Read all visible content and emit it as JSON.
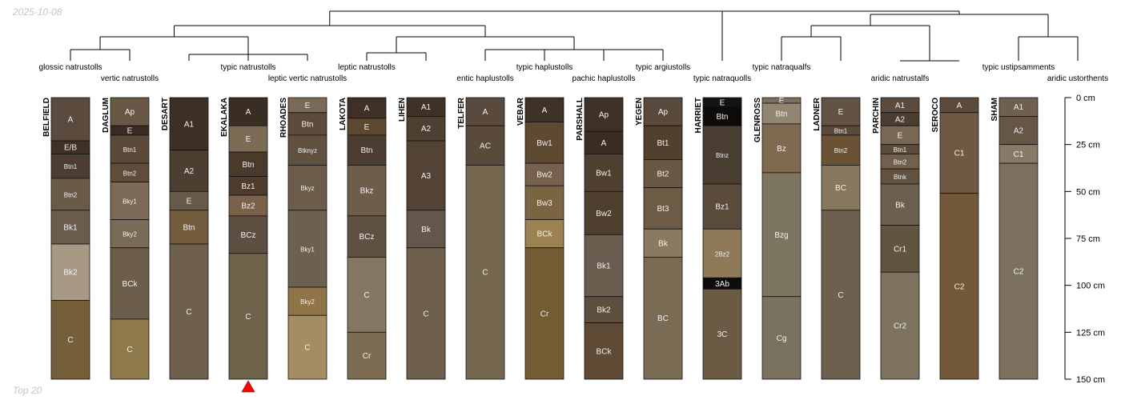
{
  "header": {
    "date": "2025-10-08"
  },
  "footer": {
    "caption": "Top 20"
  },
  "depth_axis": {
    "max": 150,
    "ticks": [
      {
        "value": 0,
        "label": "0 cm"
      },
      {
        "value": 25,
        "label": "25 cm"
      },
      {
        "value": 50,
        "label": "50 cm"
      },
      {
        "value": 75,
        "label": "75 cm"
      },
      {
        "value": 100,
        "label": "100 cm"
      },
      {
        "value": 125,
        "label": "125 cm"
      },
      {
        "value": 150,
        "label": "150 cm"
      }
    ]
  },
  "taxa": [
    {
      "name": "glossic natrustolls",
      "profile": 0
    },
    {
      "name": "vertic natrustolls",
      "profile": 1
    },
    {
      "name": "typic natrustolls",
      "profile": 3
    },
    {
      "name": "leptic vertic natrustolls",
      "profile": 4
    },
    {
      "name": "leptic natrustolls",
      "profile": 5
    },
    {
      "name": "entic haplustolls",
      "profile": 7
    },
    {
      "name": "typic haplustolls",
      "profile": 8
    },
    {
      "name": "pachic haplustolls",
      "profile": 9
    },
    {
      "name": "typic argiustolls",
      "profile": 10
    },
    {
      "name": "typic natraquolls",
      "profile": 11
    },
    {
      "name": "typic natraqualfs",
      "profile": 12
    },
    {
      "name": "aridic natrustalfs",
      "profile": 14
    },
    {
      "name": "typic ustipsamments",
      "profile": 16
    },
    {
      "name": "aridic ustorthents",
      "profile": 17
    }
  ],
  "highlight": {
    "profile": 3,
    "marker": "red-triangle",
    "color": "#ff0000"
  },
  "profiles": [
    {
      "name": "BELFIELD",
      "horizons": [
        {
          "label": "A",
          "top": 0,
          "bottom": 23,
          "color": "#5b4b3e"
        },
        {
          "label": "E/B",
          "top": 23,
          "bottom": 30,
          "color": "#3f3024"
        },
        {
          "label": "Btn1",
          "top": 30,
          "bottom": 43,
          "color": "#4c3d30"
        },
        {
          "label": "Btn2",
          "top": 43,
          "bottom": 60,
          "color": "#6a5a48"
        },
        {
          "label": "Bk1",
          "top": 60,
          "bottom": 78,
          "color": "#6b5d4e"
        },
        {
          "label": "Bk2",
          "top": 78,
          "bottom": 108,
          "color": "#a79984"
        },
        {
          "label": "C",
          "top": 108,
          "bottom": 150,
          "color": "#745f3a"
        }
      ]
    },
    {
      "name": "DAGLUM",
      "horizons": [
        {
          "label": "Ap",
          "top": 0,
          "bottom": 15,
          "color": "#6a5846"
        },
        {
          "label": "E",
          "top": 15,
          "bottom": 20,
          "color": "#3a2c22"
        },
        {
          "label": "Btn1",
          "top": 20,
          "bottom": 35,
          "color": "#5b4a3a"
        },
        {
          "label": "Btn2",
          "top": 35,
          "bottom": 45,
          "color": "#5f4c3a"
        },
        {
          "label": "Bky1",
          "top": 45,
          "bottom": 65,
          "color": "#7d6a56"
        },
        {
          "label": "Bky2",
          "top": 65,
          "bottom": 80,
          "color": "#7a6a58"
        },
        {
          "label": "BCk",
          "top": 80,
          "bottom": 118,
          "color": "#6c5d4b"
        },
        {
          "label": "C",
          "top": 118,
          "bottom": 150,
          "color": "#8f7a4c"
        }
      ]
    },
    {
      "name": "DESART",
      "horizons": [
        {
          "label": "A1",
          "top": 0,
          "bottom": 28,
          "color": "#3c2f24"
        },
        {
          "label": "A2",
          "top": 28,
          "bottom": 50,
          "color": "#4c3e31"
        },
        {
          "label": "E",
          "top": 50,
          "bottom": 60,
          "color": "#685a4a"
        },
        {
          "label": "Btn",
          "top": 60,
          "bottom": 78,
          "color": "#745d3e"
        },
        {
          "label": "C",
          "top": 78,
          "bottom": 150,
          "color": "#6e604d"
        }
      ]
    },
    {
      "name": "EKALAKA",
      "horizons": [
        {
          "label": "A",
          "top": 0,
          "bottom": 15,
          "color": "#3a2e24"
        },
        {
          "label": "E",
          "top": 15,
          "bottom": 29,
          "color": "#7c6b55"
        },
        {
          "label": "Btn",
          "top": 29,
          "bottom": 42,
          "color": "#4a3a2c"
        },
        {
          "label": "Bz1",
          "top": 42,
          "bottom": 52,
          "color": "#4d3c2e"
        },
        {
          "label": "Bz2",
          "top": 52,
          "bottom": 63,
          "color": "#7a624a"
        },
        {
          "label": "BCz",
          "top": 63,
          "bottom": 83,
          "color": "#5c4e41"
        },
        {
          "label": "C",
          "top": 83,
          "bottom": 150,
          "color": "#6e624b"
        }
      ]
    },
    {
      "name": "RHOADES",
      "horizons": [
        {
          "label": "E",
          "top": 0,
          "bottom": 8,
          "color": "#7c6a58"
        },
        {
          "label": "Btn",
          "top": 8,
          "bottom": 20,
          "color": "#5c4b3b"
        },
        {
          "label": "Btknyz",
          "top": 20,
          "bottom": 36,
          "color": "#60513f"
        },
        {
          "label": "Bkyz",
          "top": 36,
          "bottom": 60,
          "color": "#6c5c4a"
        },
        {
          "label": "Bky1",
          "top": 60,
          "bottom": 101,
          "color": "#6e604e"
        },
        {
          "label": "Bky2",
          "top": 101,
          "bottom": 116,
          "color": "#8f7447"
        },
        {
          "label": "C",
          "top": 116,
          "bottom": 150,
          "color": "#a48d62"
        }
      ]
    },
    {
      "name": "LAKOTA",
      "horizons": [
        {
          "label": "A",
          "top": 0,
          "bottom": 11,
          "color": "#3e3026"
        },
        {
          "label": "E",
          "top": 11,
          "bottom": 20,
          "color": "#5c4830"
        },
        {
          "label": "Btn",
          "top": 20,
          "bottom": 36,
          "color": "#4c3d30"
        },
        {
          "label": "Bkz",
          "top": 36,
          "bottom": 63,
          "color": "#6d5d4a"
        },
        {
          "label": "BCz",
          "top": 63,
          "bottom": 85,
          "color": "#5e5142"
        },
        {
          "label": "C",
          "top": 85,
          "bottom": 125,
          "color": "#837763"
        },
        {
          "label": "Cr",
          "top": 125,
          "bottom": 150,
          "color": "#7c6d52"
        }
      ]
    },
    {
      "name": "LIHEN",
      "horizons": [
        {
          "label": "A1",
          "top": 0,
          "bottom": 10,
          "color": "#3f3126"
        },
        {
          "label": "A2",
          "top": 10,
          "bottom": 23,
          "color": "#4e3f33"
        },
        {
          "label": "A3",
          "top": 23,
          "bottom": 60,
          "color": "#534335"
        },
        {
          "label": "Bk",
          "top": 60,
          "bottom": 80,
          "color": "#63564a"
        },
        {
          "label": "C",
          "top": 80,
          "bottom": 150,
          "color": "#6e604d"
        }
      ]
    },
    {
      "name": "TELFER",
      "horizons": [
        {
          "label": "A",
          "top": 0,
          "bottom": 15,
          "color": "#5a4a3d"
        },
        {
          "label": "AC",
          "top": 15,
          "bottom": 36,
          "color": "#5a4a3c"
        },
        {
          "label": "C",
          "top": 36,
          "bottom": 150,
          "color": "#76674f"
        }
      ]
    },
    {
      "name": "VEBAR",
      "horizons": [
        {
          "label": "A",
          "top": 0,
          "bottom": 13,
          "color": "#3e3126"
        },
        {
          "label": "Bw1",
          "top": 13,
          "bottom": 35,
          "color": "#5e4a32"
        },
        {
          "label": "Bw2",
          "top": 35,
          "bottom": 47,
          "color": "#76624c"
        },
        {
          "label": "Bw3",
          "top": 47,
          "bottom": 65,
          "color": "#7b6442"
        },
        {
          "label": "BCk",
          "top": 65,
          "bottom": 80,
          "color": "#9c8252"
        },
        {
          "label": "Cr",
          "top": 80,
          "bottom": 150,
          "color": "#735b33"
        }
      ]
    },
    {
      "name": "PARSHALL",
      "horizons": [
        {
          "label": "Ap",
          "top": 0,
          "bottom": 18,
          "color": "#3e3126"
        },
        {
          "label": "A",
          "top": 18,
          "bottom": 30,
          "color": "#3a2d22"
        },
        {
          "label": "Bw1",
          "top": 30,
          "bottom": 50,
          "color": "#4e3f31"
        },
        {
          "label": "Bw2",
          "top": 50,
          "bottom": 73,
          "color": "#4f3f2e"
        },
        {
          "label": "Bk1",
          "top": 73,
          "bottom": 106,
          "color": "#6a5d4f"
        },
        {
          "label": "Bk2",
          "top": 106,
          "bottom": 120,
          "color": "#5d4f40"
        },
        {
          "label": "BCk",
          "top": 120,
          "bottom": 150,
          "color": "#5e4a35"
        }
      ]
    },
    {
      "name": "YEGEN",
      "horizons": [
        {
          "label": "Ap",
          "top": 0,
          "bottom": 15,
          "color": "#5a4a3d"
        },
        {
          "label": "Bt1",
          "top": 15,
          "bottom": 33,
          "color": "#523f2e"
        },
        {
          "label": "Bt2",
          "top": 33,
          "bottom": 48,
          "color": "#6a5744"
        },
        {
          "label": "Bt3",
          "top": 48,
          "bottom": 70,
          "color": "#6d5b46"
        },
        {
          "label": "Bk",
          "top": 70,
          "bottom": 85,
          "color": "#8b7a62"
        },
        {
          "label": "BC",
          "top": 85,
          "bottom": 150,
          "color": "#7a6b55"
        }
      ]
    },
    {
      "name": "HARRIET",
      "horizons": [
        {
          "label": "E",
          "top": 0,
          "bottom": 5,
          "color": "#151311"
        },
        {
          "label": "Btn",
          "top": 5,
          "bottom": 15,
          "color": "#0c0b0a"
        },
        {
          "label": "Btnz",
          "top": 15,
          "bottom": 46,
          "color": "#4a3d31"
        },
        {
          "label": "Bz1",
          "top": 46,
          "bottom": 70,
          "color": "#5b4b3c"
        },
        {
          "label": "2Bz2",
          "top": 70,
          "bottom": 96,
          "color": "#8f7a58"
        },
        {
          "label": "3Ab",
          "top": 96,
          "bottom": 102,
          "color": "#0d0c0b"
        },
        {
          "label": "3C",
          "top": 102,
          "bottom": 150,
          "color": "#6b5a44"
        }
      ]
    },
    {
      "name": "GLENROSS",
      "horizons": [
        {
          "label": "E",
          "top": 0,
          "bottom": 3,
          "color": "#7c6e60"
        },
        {
          "label": "Btn",
          "top": 3,
          "bottom": 14,
          "color": "#938670"
        },
        {
          "label": "Bz",
          "top": 14,
          "bottom": 40,
          "color": "#7f6a50"
        },
        {
          "label": "Bzg",
          "top": 40,
          "bottom": 106,
          "color": "#7d7560"
        },
        {
          "label": "Cg",
          "top": 106,
          "bottom": 150,
          "color": "#7a705e"
        }
      ]
    },
    {
      "name": "LADNER",
      "horizons": [
        {
          "label": "E",
          "top": 0,
          "bottom": 15,
          "color": "#635345"
        },
        {
          "label": "Btn1",
          "top": 15,
          "bottom": 20,
          "color": "#5a4a3a"
        },
        {
          "label": "Btn2",
          "top": 20,
          "bottom": 36,
          "color": "#6c5234"
        },
        {
          "label": "BC",
          "top": 36,
          "bottom": 60,
          "color": "#87775d"
        },
        {
          "label": "C",
          "top": 60,
          "bottom": 150,
          "color": "#6e604e"
        }
      ]
    },
    {
      "name": "PARCHIN",
      "horizons": [
        {
          "label": "A1",
          "top": 0,
          "bottom": 8,
          "color": "#5c4b3c"
        },
        {
          "label": "A2",
          "top": 8,
          "bottom": 15,
          "color": "#4b3d31"
        },
        {
          "label": "E",
          "top": 15,
          "bottom": 25,
          "color": "#796653"
        },
        {
          "label": "Btn1",
          "top": 25,
          "bottom": 30,
          "color": "#5c4c3e"
        },
        {
          "label": "Btn2",
          "top": 30,
          "bottom": 38,
          "color": "#72604c"
        },
        {
          "label": "Btnk",
          "top": 38,
          "bottom": 46,
          "color": "#62523f"
        },
        {
          "label": "Bk",
          "top": 46,
          "bottom": 68,
          "color": "#6b604f"
        },
        {
          "label": "Cr1",
          "top": 68,
          "bottom": 93,
          "color": "#61553f"
        },
        {
          "label": "Cr2",
          "top": 93,
          "bottom": 150,
          "color": "#7c725e"
        }
      ]
    },
    {
      "name": "SEROCO",
      "horizons": [
        {
          "label": "A",
          "top": 0,
          "bottom": 8,
          "color": "#5c4b3c"
        },
        {
          "label": "C1",
          "top": 8,
          "bottom": 51,
          "color": "#6e5a43"
        },
        {
          "label": "C2",
          "top": 51,
          "bottom": 150,
          "color": "#73593a"
        }
      ]
    },
    {
      "name": "SHAM",
      "horizons": [
        {
          "label": "A1",
          "top": 0,
          "bottom": 10,
          "color": "#6e5f50"
        },
        {
          "label": "A2",
          "top": 10,
          "bottom": 25,
          "color": "#655645"
        },
        {
          "label": "C1",
          "top": 25,
          "bottom": 35,
          "color": "#887a66"
        },
        {
          "label": "C2",
          "top": 35,
          "bottom": 150,
          "color": "#7c715f"
        }
      ]
    }
  ]
}
